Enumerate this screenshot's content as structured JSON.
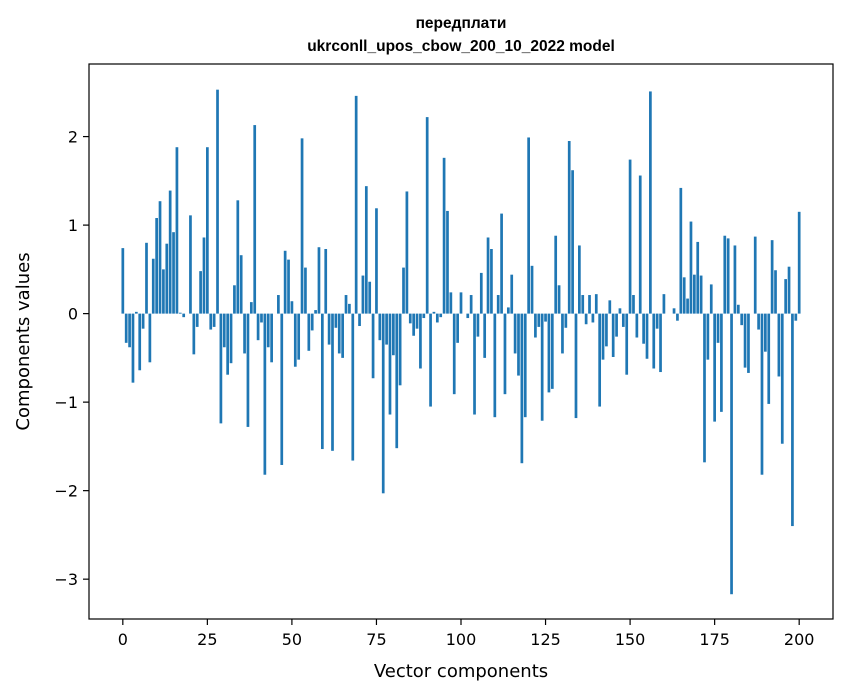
{
  "chart_data": {
    "type": "bar",
    "title_line1": "передплати",
    "title_line2": "ukrconll_upos_cbow_200_10_2022 model",
    "xlabel": "Vector components",
    "ylabel": "Components values",
    "xlim": [
      -10,
      210
    ],
    "ylim": [
      -3.45,
      2.82
    ],
    "xticks": [
      0,
      25,
      50,
      75,
      100,
      125,
      150,
      175,
      200
    ],
    "xtick_labels": [
      "0",
      "25",
      "50",
      "75",
      "100",
      "125",
      "150",
      "175",
      "200"
    ],
    "yticks": [
      -3,
      -2,
      -1,
      0,
      1,
      2
    ],
    "ytick_labels": [
      "−3",
      "−2",
      "−1",
      "0",
      "1",
      "2"
    ],
    "bar_color": "#1f77b4",
    "values": [
      0.74,
      -0.33,
      -0.38,
      -0.78,
      0.02,
      -0.64,
      -0.17,
      0.8,
      -0.55,
      0.62,
      1.08,
      1.27,
      0.5,
      0.79,
      1.39,
      0.92,
      1.88,
      0.01,
      -0.04,
      0.0,
      1.11,
      -0.46,
      -0.15,
      0.48,
      0.86,
      1.88,
      -0.18,
      -0.15,
      2.53,
      -1.24,
      -0.38,
      -0.69,
      -0.56,
      0.32,
      1.28,
      0.66,
      -0.45,
      -1.28,
      0.13,
      2.13,
      -0.3,
      -0.1,
      -1.82,
      -0.38,
      -0.55,
      0.0,
      0.21,
      -1.71,
      0.71,
      0.61,
      0.14,
      -0.6,
      -0.52,
      1.98,
      0.52,
      -0.42,
      -0.19,
      0.04,
      0.75,
      -1.53,
      0.73,
      -0.35,
      -1.55,
      -0.16,
      -0.45,
      -0.5,
      0.21,
      0.11,
      -1.66,
      2.46,
      -0.14,
      0.43,
      1.44,
      0.36,
      -0.73,
      1.19,
      -0.3,
      -2.03,
      -0.35,
      -1.14,
      -0.47,
      -1.52,
      -0.81,
      0.52,
      1.38,
      -0.11,
      -0.25,
      -0.17,
      -0.62,
      -0.05,
      2.22,
      -1.05,
      0.02,
      -0.1,
      -0.04,
      1.76,
      1.16,
      0.24,
      -0.91,
      -0.33,
      0.24,
      0.0,
      -0.05,
      0.21,
      -1.14,
      -0.26,
      0.46,
      -0.5,
      0.86,
      0.73,
      -1.17,
      0.21,
      1.13,
      -0.91,
      0.07,
      0.44,
      -0.45,
      -0.7,
      -1.69,
      -1.17,
      1.99,
      0.54,
      -0.27,
      -0.15,
      -1.21,
      -0.09,
      -0.89,
      -0.85,
      0.88,
      0.32,
      -0.45,
      -0.16,
      1.95,
      1.62,
      -1.18,
      0.77,
      0.21,
      -0.12,
      0.21,
      -0.1,
      0.22,
      -1.05,
      -0.52,
      -0.37,
      0.15,
      -0.49,
      -0.26,
      0.06,
      -0.15,
      -0.69,
      1.74,
      0.21,
      -0.27,
      1.56,
      -0.34,
      -0.51,
      2.51,
      -0.62,
      -0.17,
      -0.66,
      0.22,
      0.0,
      0.0,
      0.06,
      -0.08,
      1.42,
      0.41,
      0.17,
      1.04,
      0.44,
      0.81,
      0.43,
      -1.68,
      -0.52,
      0.33,
      -1.22,
      -0.33,
      -1.11,
      0.88,
      0.85,
      -3.17,
      0.77,
      0.1,
      -0.13,
      -0.61,
      -0.67,
      0.0,
      0.87,
      -0.18,
      -1.82,
      -0.43,
      -1.02,
      0.83,
      0.49,
      -0.71,
      -1.47,
      0.39,
      0.53,
      -2.4,
      -0.08,
      1.15
    ]
  }
}
